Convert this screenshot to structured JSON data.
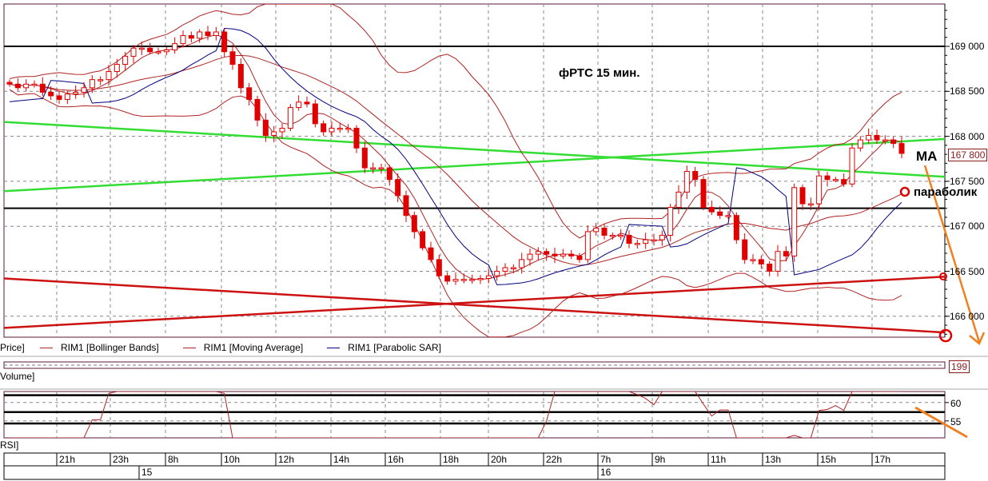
{
  "chart_data": {
    "type": "candlestick",
    "instrument_title": "фРТС   15 мин.",
    "y_ticks": [
      169000,
      168500,
      168000,
      167500,
      167000,
      166500,
      166000
    ],
    "y_tick_labels": [
      "169 000",
      "168 500",
      "168 000",
      "167 500",
      "167 000",
      "166 500",
      "166 000"
    ],
    "ylim": [
      165770,
      169470
    ],
    "last_price_label": "167 800",
    "x_tick_labels": [
      "21h",
      "23h",
      "8h",
      "10h",
      "12h",
      "14h",
      "16h",
      "18h",
      "20h",
      "22h",
      "7h",
      "9h",
      "11h",
      "13h",
      "15h",
      "17h"
    ],
    "date_labels": [
      "15",
      "16"
    ],
    "grid": true,
    "closes": [
      168580,
      168540,
      168580,
      168580,
      168490,
      168450,
      168410,
      168470,
      168490,
      168540,
      168630,
      168630,
      168720,
      168800,
      168890,
      168980,
      168980,
      168940,
      168940,
      168960,
      169030,
      169120,
      169090,
      169160,
      169120,
      169160,
      168940,
      168800,
      168540,
      168410,
      168180,
      168010,
      168050,
      168090,
      168320,
      168380,
      168360,
      168140,
      168050,
      168090,
      168090,
      168090,
      167870,
      167650,
      167650,
      167650,
      167520,
      167340,
      167120,
      166940,
      166760,
      166630,
      166450,
      166390,
      166410,
      166410,
      166410,
      166420,
      166450,
      166500,
      166540,
      166540,
      166630,
      166690,
      166720,
      166690,
      166670,
      166690,
      166670,
      166630,
      166940,
      166980,
      166900,
      166900,
      166900,
      166810,
      166810,
      166850,
      166850,
      166900,
      167210,
      167380,
      167610,
      167520,
      167210,
      167160,
      167120,
      167120,
      166850,
      166630,
      166630,
      166580,
      166500,
      166720,
      166670,
      167430,
      167250,
      167250,
      167560,
      167520,
      167520,
      167470,
      167870,
      167960,
      168010,
      167960,
      167960,
      167920,
      167810
    ],
    "horizontal_levels": [
      169000,
      167200
    ],
    "trend_lines": [
      {
        "color": "#33dd33",
        "start": 168160,
        "end": 167550
      },
      {
        "color": "#33dd33",
        "start": 167390,
        "end": 167970
      },
      {
        "color": "#cc1111",
        "start": 166420,
        "end": 165820
      },
      {
        "color": "#cc1111",
        "start": 165870,
        "end": 166440
      }
    ],
    "legend": [
      {
        "label": "RIM1 [Bollinger Bands]",
        "color": "#b22222"
      },
      {
        "label": "RIM1 [Moving Average]",
        "color": "#b22222"
      },
      {
        "label": "RIM1 [Parabolic SAR]",
        "color": "#000080"
      }
    ],
    "colors": {
      "candle": "#e00000",
      "bands": "#b22222",
      "sar": "#000080",
      "arrow": "#f08020"
    },
    "volume": {
      "label": "Volume]",
      "last_value": "199"
    },
    "rsi": {
      "label": "RSI]",
      "ticks": [
        60,
        55
      ],
      "tick_labels": [
        "60",
        "55"
      ],
      "levels": [
        62,
        57.4,
        54.3
      ],
      "ylim": [
        50.4,
        63
      ]
    },
    "price_panel_label": "Price]",
    "annotations": {
      "ma": "MA",
      "parabolic": "параболик"
    }
  }
}
